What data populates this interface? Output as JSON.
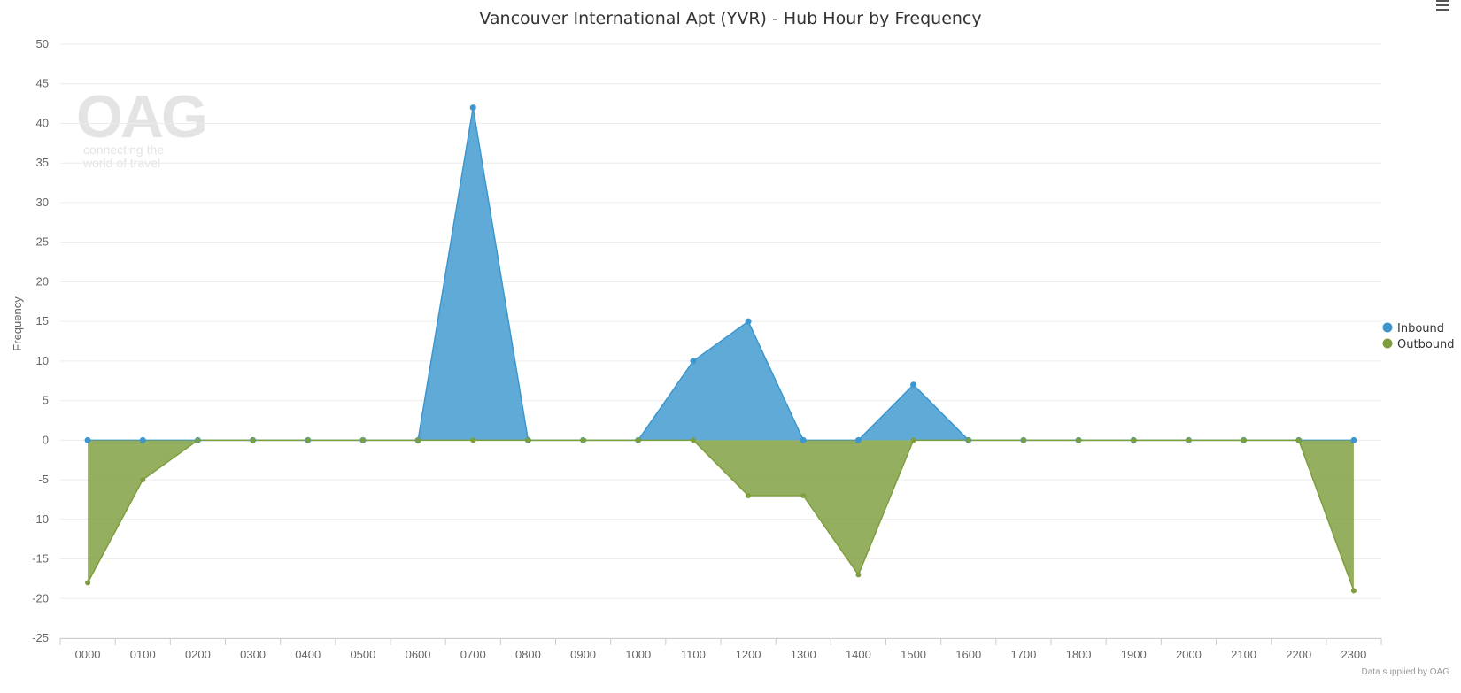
{
  "colors": {
    "inbound": "#3d97ce",
    "outbound": "#7e9e3e",
    "grid": "#ececec",
    "axis": "#cccccc"
  },
  "watermark": {
    "brand": "OAG",
    "tagline_1": "connecting the",
    "tagline_2": "world of travel"
  },
  "menu": {
    "icon": "hamburger-menu-icon"
  },
  "credit": "Data supplied by OAG",
  "chart_data": {
    "type": "area",
    "title": "Vancouver International Apt (YVR) - Hub Hour by Frequency",
    "xlabel": "",
    "ylabel": "Frequency",
    "ylim": [
      -25,
      50
    ],
    "yticks": [
      50,
      45,
      40,
      35,
      30,
      25,
      20,
      15,
      10,
      5,
      0,
      -5,
      -10,
      -15,
      -20,
      -25
    ],
    "grid": true,
    "legend_position": "right",
    "categories": [
      "0000",
      "0100",
      "0200",
      "0300",
      "0400",
      "0500",
      "0600",
      "0700",
      "0800",
      "0900",
      "1000",
      "1100",
      "1200",
      "1300",
      "1400",
      "1500",
      "1600",
      "1700",
      "1800",
      "1900",
      "2000",
      "2100",
      "2200",
      "2300"
    ],
    "series": [
      {
        "name": "Inbound",
        "values": [
          0,
          0,
          0,
          0,
          0,
          0,
          0,
          42,
          0,
          0,
          0,
          10,
          15,
          0,
          0,
          7,
          0,
          0,
          0,
          0,
          0,
          0,
          0,
          0
        ]
      },
      {
        "name": "Outbound",
        "values": [
          -18,
          -5,
          0,
          0,
          0,
          0,
          0,
          0,
          0,
          0,
          0,
          0,
          -7,
          -7,
          -17,
          0,
          0,
          0,
          0,
          0,
          0,
          0,
          0,
          -19
        ]
      }
    ]
  }
}
